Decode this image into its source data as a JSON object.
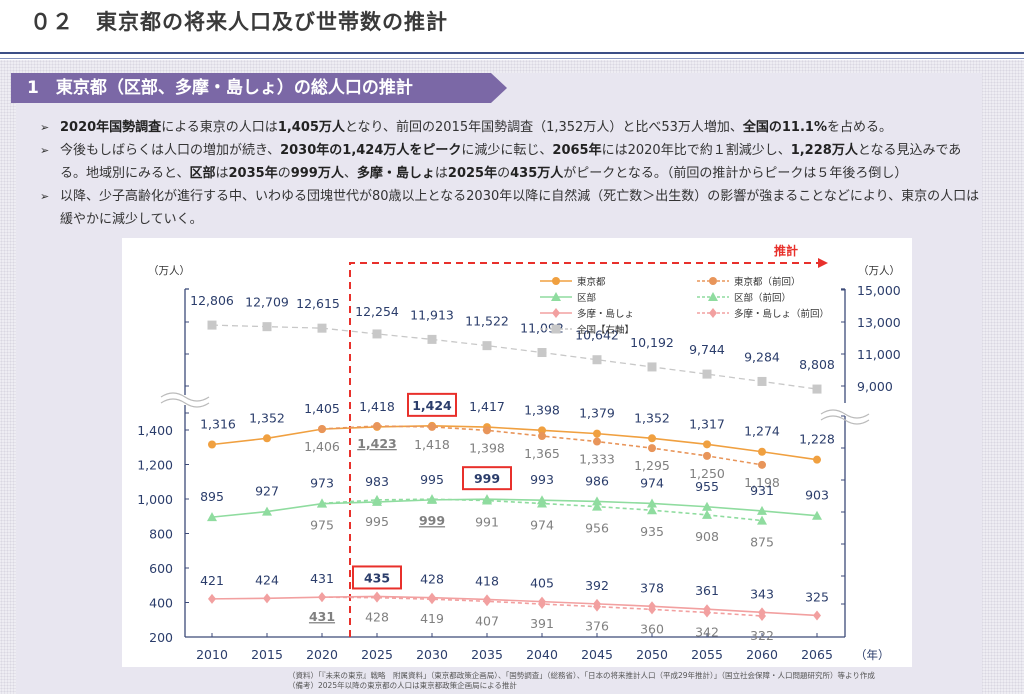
{
  "page": {
    "title": "０２　東京都の将来人口及び世帯数の推計",
    "section_title": "1　東京都（区部、多摩・島しょ）の総人口の推計"
  },
  "bullets": [
    {
      "segments": [
        {
          "t": "2020年国勢調査",
          "b": true
        },
        {
          "t": "による東京の人口は",
          "b": false
        },
        {
          "t": "1,405万人",
          "b": true
        },
        {
          "t": "となり、前回の2015年国勢調査（1,352万人）と比べ53万人増加、",
          "b": false
        },
        {
          "t": "全国の11.1%",
          "b": true
        },
        {
          "t": "を占める。",
          "b": false
        }
      ]
    },
    {
      "segments": [
        {
          "t": "今後もしばらくは人口の増加が続き、",
          "b": false
        },
        {
          "t": "2030年の1,424万人をピーク",
          "b": true
        },
        {
          "t": "に減少に転じ、",
          "b": false
        },
        {
          "t": "2065年",
          "b": true
        },
        {
          "t": "には2020年比で約１割減少し、",
          "b": false
        },
        {
          "t": "1,228万人",
          "b": true
        },
        {
          "t": "となる見込みである。地域別にみると、",
          "b": false
        },
        {
          "t": "区部",
          "b": true
        },
        {
          "t": "は",
          "b": false
        },
        {
          "t": "2035年",
          "b": true
        },
        {
          "t": "の",
          "b": false
        },
        {
          "t": "999万人",
          "b": true
        },
        {
          "t": "、",
          "b": false
        },
        {
          "t": "多摩・島しょ",
          "b": true
        },
        {
          "t": "は",
          "b": false
        },
        {
          "t": "2025年",
          "b": true
        },
        {
          "t": "の",
          "b": false
        },
        {
          "t": "435万人",
          "b": true
        },
        {
          "t": "がピークとなる。（前回の推計からピークは５年後ろ倒し）",
          "b": false
        }
      ]
    },
    {
      "segments": [
        {
          "t": "以降、少子高齢化が進行する中、いわゆる団塊世代が80歳以上となる2030年以降に自然減（死亡数＞出生数）の影響が強まることなどにより、東京の人口は緩やかに減少していく。",
          "b": false
        }
      ]
    }
  ],
  "bullet_mark": "➢",
  "chart_data": {
    "type": "line",
    "title": "",
    "xlabel": "（年）",
    "ylabel_left": "（万人）",
    "ylabel_right": "（万人）",
    "projection_label": "推計",
    "projection_start_between": [
      2020,
      2025
    ],
    "x": [
      2010,
      2015,
      2020,
      2025,
      2030,
      2035,
      2040,
      2045,
      2050,
      2055,
      2060,
      2065
    ],
    "y_left_ticks": [
      200,
      400,
      600,
      800,
      1000,
      1200,
      1400
    ],
    "y_left_ticklabels": [
      "200",
      "400",
      "600",
      "800",
      "1,000",
      "1,200",
      "1,400"
    ],
    "y_left_range": [
      200,
      1400
    ],
    "y_right_ticks": [
      9000,
      11000,
      13000,
      15000
    ],
    "y_right_ticklabels": [
      "9,000",
      "11,000",
      "13,000",
      "15,000"
    ],
    "y_right_range": [
      9000,
      15000
    ],
    "axis_break": true,
    "legend_position": "top-right",
    "series": [
      {
        "key": "tokyo",
        "name": "東京都",
        "color": "#f0a040",
        "dash": false,
        "marker": "circle",
        "axis": "left",
        "values": [
          1316,
          1352,
          1405,
          1418,
          1424,
          1417,
          1398,
          1379,
          1352,
          1317,
          1274,
          1228
        ],
        "labels": [
          "1,316",
          "1,352",
          "1,405",
          "1,418",
          "1,424",
          "1,417",
          "1,398",
          "1,379",
          "1,352",
          "1,317",
          "1,274",
          "1,228"
        ],
        "highlight_index": 4
      },
      {
        "key": "tokyo_prev",
        "name": "東京都（前回）",
        "color": "#e8955a",
        "dash": true,
        "marker": "circle",
        "axis": "left",
        "values": [
          null,
          null,
          1406,
          1423,
          1418,
          1398,
          1365,
          1333,
          1295,
          1250,
          1198,
          null
        ],
        "labels": [
          null,
          null,
          "1,406",
          "1,423",
          "1,418",
          "1,398",
          "1,365",
          "1,333",
          "1,295",
          "1,250",
          "1,198",
          null
        ],
        "underline_index": 3
      },
      {
        "key": "ku",
        "name": "区部",
        "color": "#8fdc9f",
        "dash": false,
        "marker": "triangle",
        "axis": "left",
        "values": [
          895,
          927,
          973,
          983,
          995,
          999,
          993,
          986,
          974,
          955,
          931,
          903
        ],
        "labels": [
          "895",
          "927",
          "973",
          "983",
          "995",
          "999",
          "993",
          "986",
          "974",
          "955",
          "931",
          "903"
        ],
        "highlight_index": 5
      },
      {
        "key": "ku_prev",
        "name": "区部（前回）",
        "color": "#8fdc9f",
        "dash": true,
        "marker": "triangle",
        "axis": "left",
        "values": [
          null,
          null,
          975,
          995,
          999,
          991,
          974,
          956,
          935,
          908,
          875,
          null
        ],
        "labels": [
          null,
          null,
          "975",
          "995",
          "999",
          "991",
          "974",
          "956",
          "935",
          "908",
          "875",
          null
        ],
        "underline_index": 4
      },
      {
        "key": "tama",
        "name": "多摩・島しょ",
        "color": "#f2a0a0",
        "dash": false,
        "marker": "diamond",
        "axis": "left",
        "values": [
          421,
          424,
          431,
          435,
          428,
          418,
          405,
          392,
          378,
          361,
          343,
          325
        ],
        "labels": [
          "421",
          "424",
          "431",
          "435",
          "428",
          "418",
          "405",
          "392",
          "378",
          "361",
          "343",
          "325"
        ],
        "highlight_index": 3
      },
      {
        "key": "tama_prev",
        "name": "多摩・島しょ（前回）",
        "color": "#f2a0a0",
        "dash": true,
        "marker": "diamond",
        "axis": "left",
        "values": [
          null,
          null,
          431,
          428,
          419,
          407,
          391,
          376,
          360,
          342,
          322,
          null
        ],
        "labels": [
          null,
          null,
          "431",
          "428",
          "419",
          "407",
          "391",
          "376",
          "360",
          "342",
          "322",
          null
        ],
        "underline_index": 2
      },
      {
        "key": "national",
        "name": "全国【右軸】",
        "color": "#c8c8c8",
        "dash": true,
        "marker": "square",
        "axis": "right",
        "values": [
          12806,
          12709,
          12615,
          12254,
          11913,
          11522,
          11092,
          10642,
          10192,
          9744,
          9284,
          8808
        ],
        "labels": [
          "12,806",
          "12,709",
          "12,615",
          "12,254",
          "11,913",
          "11,522",
          "11,092",
          "10,642",
          "10,192",
          "9,744",
          "9,284",
          "8,808"
        ]
      }
    ]
  },
  "colors": {
    "banner": "#7b68a6",
    "axis": "#3c4a78",
    "label_current": "#2b3d6b",
    "label_prev": "#808080",
    "projection": "#e8302b",
    "highlight_box": "#e8302b"
  },
  "footnotes": [
    "（資料）「『未来の東京』戦略　附属資料」（東京都政策企画局）、「国勢調査」（総務省）、「日本の将来推計人口（平成29年推計）」（国立社会保障・人口問題研究所）等より作成",
    "（備考）2025年以降の東京都の人口は東京都政策企画局による推計"
  ]
}
